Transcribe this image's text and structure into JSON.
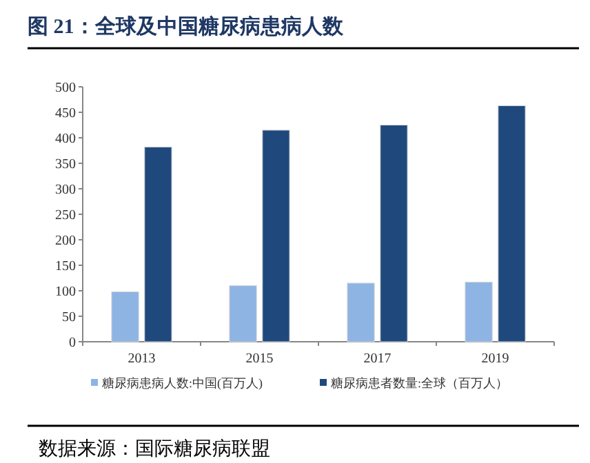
{
  "chart_data": {
    "type": "bar",
    "title": "图 21：全球及中国糖尿病患病人数",
    "categories": [
      "2013",
      "2015",
      "2017",
      "2019"
    ],
    "series": [
      {
        "name": "糖尿病患病人数:中国(百万人)",
        "color": "#8eb4e3",
        "values": [
          98,
          110,
          115,
          117
        ]
      },
      {
        "name": "糖尿病患者数量:全球（百万人）",
        "color": "#1f497d",
        "values": [
          382,
          415,
          425,
          463
        ]
      }
    ],
    "ylim": [
      0,
      500
    ],
    "yticks": [
      0,
      50,
      100,
      150,
      200,
      250,
      300,
      350,
      400,
      450,
      500
    ],
    "grid": false,
    "legend": "bottom",
    "annotations": [
      "数据来源：国际糖尿病联盟"
    ]
  }
}
